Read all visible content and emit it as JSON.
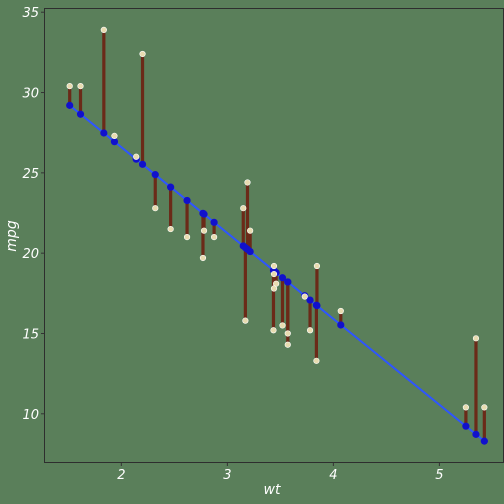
{
  "chart_data": {
    "type": "scatter",
    "title": "",
    "xlabel": "wt",
    "ylabel": "mpg",
    "xlim": [
      1.28,
      5.6
    ],
    "ylim": [
      7.0,
      35.2
    ],
    "x_ticks": [
      2,
      3,
      4,
      5
    ],
    "y_ticks": [
      10,
      15,
      20,
      25,
      30,
      35
    ],
    "grid": false,
    "legend": "none",
    "colors": {
      "background": "#5a7f5a",
      "panel_border": "#2e2e2e",
      "residual_segment": "#6b2a18",
      "observed_point": "#e8dcb0",
      "fitted_point": "#1111cc",
      "regression_line": "#2e55ff",
      "text": "#ffffff"
    },
    "regression_line": {
      "x": [
        1.513,
        5.424
      ],
      "y": [
        29.2,
        8.3
      ]
    },
    "points": [
      {
        "x": 2.62,
        "mpg": 21.0,
        "fitted": 23.28
      },
      {
        "x": 2.875,
        "mpg": 21.0,
        "fitted": 21.92
      },
      {
        "x": 2.32,
        "mpg": 22.8,
        "fitted": 24.89
      },
      {
        "x": 3.215,
        "mpg": 21.4,
        "fitted": 20.1
      },
      {
        "x": 3.44,
        "mpg": 18.7,
        "fitted": 18.9
      },
      {
        "x": 3.46,
        "mpg": 18.1,
        "fitted": 18.79
      },
      {
        "x": 3.57,
        "mpg": 14.3,
        "fitted": 18.21
      },
      {
        "x": 3.19,
        "mpg": 24.4,
        "fitted": 20.24
      },
      {
        "x": 3.15,
        "mpg": 22.8,
        "fitted": 20.45
      },
      {
        "x": 3.44,
        "mpg": 19.2,
        "fitted": 18.9
      },
      {
        "x": 3.44,
        "mpg": 17.8,
        "fitted": 18.9
      },
      {
        "x": 4.07,
        "mpg": 16.4,
        "fitted": 15.53
      },
      {
        "x": 3.73,
        "mpg": 17.3,
        "fitted": 17.35
      },
      {
        "x": 3.78,
        "mpg": 15.2,
        "fitted": 17.08
      },
      {
        "x": 5.25,
        "mpg": 10.4,
        "fitted": 9.23
      },
      {
        "x": 5.424,
        "mpg": 10.4,
        "fitted": 8.3
      },
      {
        "x": 5.345,
        "mpg": 14.7,
        "fitted": 8.72
      },
      {
        "x": 2.2,
        "mpg": 32.4,
        "fitted": 25.53
      },
      {
        "x": 1.615,
        "mpg": 30.4,
        "fitted": 28.65
      },
      {
        "x": 1.835,
        "mpg": 33.9,
        "fitted": 27.48
      },
      {
        "x": 2.465,
        "mpg": 21.5,
        "fitted": 24.11
      },
      {
        "x": 3.52,
        "mpg": 15.5,
        "fitted": 18.47
      },
      {
        "x": 3.435,
        "mpg": 15.2,
        "fitted": 18.93
      },
      {
        "x": 3.84,
        "mpg": 13.3,
        "fitted": 16.76
      },
      {
        "x": 3.845,
        "mpg": 19.2,
        "fitted": 16.74
      },
      {
        "x": 1.935,
        "mpg": 27.3,
        "fitted": 26.94
      },
      {
        "x": 2.14,
        "mpg": 26.0,
        "fitted": 25.85
      },
      {
        "x": 1.513,
        "mpg": 30.4,
        "fitted": 29.2
      },
      {
        "x": 3.17,
        "mpg": 15.8,
        "fitted": 20.34
      },
      {
        "x": 2.77,
        "mpg": 19.7,
        "fitted": 22.48
      },
      {
        "x": 3.57,
        "mpg": 15.0,
        "fitted": 18.21
      },
      {
        "x": 2.78,
        "mpg": 21.4,
        "fitted": 22.43
      }
    ]
  }
}
